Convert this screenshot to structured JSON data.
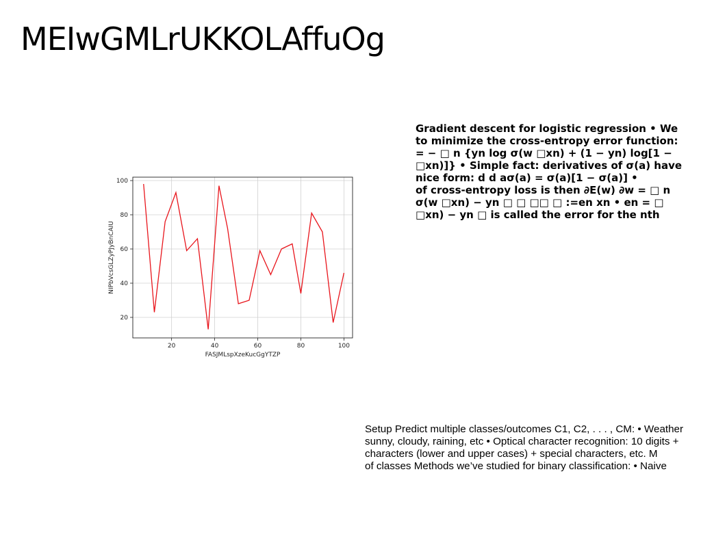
{
  "slide": {
    "title": "MEIwGMLrUKKOLAffuOg"
  },
  "text_block_1": {
    "lines": [
      "Gradient descent for logistic regression • We",
      "to minimize the cross-entropy error function:",
      "= − □ n {yn log σ(w □xn) + (1 − yn) log[1 −",
      "□xn)]} • Simple fact: derivatives of σ(a) have",
      "nice form: d d aσ(a) = σ(a)[1 − σ(a)] •",
      "of cross-entropy loss is then ∂E(w) ∂w = □ n",
      "σ(w □xn) − yn □ □ □□ □ :=en xn • en = □",
      "□xn) − yn □ is called the error for the nth"
    ]
  },
  "text_block_2": {
    "lines": [
      "Setup Predict multiple classes/outcomes C1, C2, . . . , CM: • Weather",
      "sunny, cloudy, raining, etc • Optical character recognition: 10 digits +",
      "characters (lower and upper cases) + special characters, etc. M",
      "of classes Methods we’ve studied for binary classification: • Naive"
    ]
  },
  "chart_data": {
    "type": "line",
    "xlabel": "FASJMLspXzeKucGgYTZP",
    "ylabel": "NIPbVcsGLZyPJyBnCAIU",
    "xlim": [
      2,
      104
    ],
    "ylim": [
      8,
      102
    ],
    "xticks": [
      20,
      40,
      60,
      80,
      100
    ],
    "yticks": [
      20,
      40,
      60,
      80,
      100
    ],
    "grid": true,
    "series": [
      {
        "color": "#e8141b",
        "x": [
          7,
          12,
          17,
          22,
          27,
          32,
          37,
          42,
          46,
          51,
          56,
          61,
          66,
          71,
          76,
          80,
          85,
          90,
          95,
          100
        ],
        "y": [
          98,
          23,
          76,
          93,
          59,
          66,
          13,
          97,
          72,
          28,
          30,
          59,
          45,
          60,
          63,
          34,
          81,
          70,
          17,
          46
        ]
      }
    ]
  }
}
